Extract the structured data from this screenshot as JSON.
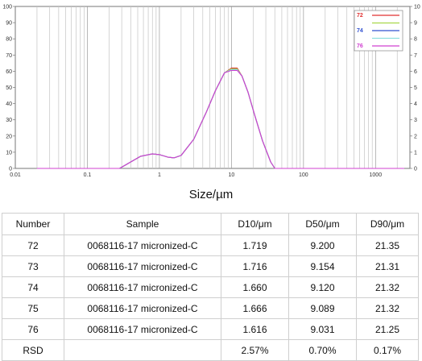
{
  "chart_data": {
    "type": "line",
    "xscale": "log",
    "xlim": [
      0.01,
      3000
    ],
    "ylim": [
      0,
      100
    ],
    "xlabel": "Size/µm",
    "x_ticks": [
      "0.01",
      "0.1",
      "1",
      "10",
      "100",
      "1000"
    ],
    "y_left_ticks": [
      "0",
      "10",
      "20",
      "30",
      "40",
      "50",
      "60",
      "70",
      "80",
      "90",
      "100"
    ],
    "y_right_ticks": [
      "0",
      "1",
      "2",
      "3",
      "4",
      "5",
      "6",
      "7",
      "8",
      "9",
      "10"
    ],
    "legend_position": "top-right",
    "series": [
      {
        "name": "72",
        "color": "#e03030",
        "x": [
          0.02,
          0.28,
          0.4,
          0.55,
          0.8,
          1.0,
          1.3,
          1.6,
          2.0,
          3.0,
          4.5,
          6.0,
          8.0,
          10.0,
          12.0,
          14.0,
          17.0,
          21.0,
          27.0,
          35.0,
          40.0,
          2500
        ],
        "y": [
          0,
          0,
          4,
          7.5,
          9,
          8.5,
          7,
          6.5,
          8,
          18,
          35,
          48,
          59,
          62,
          62,
          57,
          47,
          33,
          17,
          4,
          0,
          0
        ]
      },
      {
        "name": "",
        "color": "#a8d84a",
        "x": [
          0.02,
          0.28,
          0.4,
          0.55,
          0.8,
          1.0,
          1.3,
          1.6,
          2.0,
          3.0,
          4.5,
          6.0,
          8.0,
          10.0,
          12.0,
          14.0,
          17.0,
          21.0,
          27.0,
          35.0,
          40.0,
          2500
        ],
        "y": [
          0,
          0,
          4,
          7.5,
          9,
          8.5,
          7,
          6.5,
          8,
          18,
          35,
          48,
          59,
          61.5,
          61.5,
          57,
          47,
          33,
          17,
          4,
          0,
          0
        ]
      },
      {
        "name": "74",
        "color": "#3050d0",
        "x": [
          0.02,
          0.28,
          0.4,
          0.55,
          0.8,
          1.0,
          1.3,
          1.6,
          2.0,
          3.0,
          4.5,
          6.0,
          8.0,
          10.0,
          12.0,
          14.0,
          17.0,
          21.0,
          27.0,
          35.0,
          40.0,
          2500
        ],
        "y": [
          0,
          0,
          4,
          7.5,
          9,
          8.5,
          7,
          6.5,
          8,
          18,
          35,
          48,
          59,
          61,
          61,
          57,
          47,
          33,
          17,
          4,
          0,
          0
        ]
      },
      {
        "name": "",
        "color": "#8ee0e0",
        "x": [
          0.02,
          0.28,
          0.4,
          0.55,
          0.8,
          1.0,
          1.3,
          1.6,
          2.0,
          3.0,
          4.5,
          6.0,
          8.0,
          10.0,
          12.0,
          14.0,
          17.0,
          21.0,
          27.0,
          35.0,
          40.0,
          2500
        ],
        "y": [
          0,
          0,
          4,
          7.5,
          9,
          8.5,
          7,
          6.5,
          8,
          18,
          35,
          48,
          59,
          61,
          61,
          57,
          47,
          33,
          17,
          4,
          0,
          0
        ]
      },
      {
        "name": "76",
        "color": "#d040d0",
        "x": [
          0.02,
          0.28,
          0.4,
          0.55,
          0.8,
          1.0,
          1.3,
          1.6,
          2.0,
          3.0,
          4.5,
          6.0,
          8.0,
          10.0,
          12.0,
          14.0,
          17.0,
          21.0,
          27.0,
          35.0,
          40.0,
          2500
        ],
        "y": [
          0,
          0,
          4,
          7.5,
          9,
          8.5,
          7,
          6.5,
          8,
          18,
          35,
          48,
          59,
          60.5,
          60.5,
          57,
          47,
          33,
          17,
          4,
          0,
          0
        ]
      }
    ]
  },
  "table": {
    "headers": [
      "Number",
      "Sample",
      "D10/μm",
      "D50/μm",
      "D90/μm"
    ],
    "rows": [
      [
        "72",
        "0068116-17 micronized-C",
        "1.719",
        "9.200",
        "21.35"
      ],
      [
        "73",
        "0068116-17 micronized-C",
        "1.716",
        "9.154",
        "21.31"
      ],
      [
        "74",
        "0068116-17 micronized-C",
        "1.660",
        "9.120",
        "21.32"
      ],
      [
        "75",
        "0068116-17 micronized-C",
        "1.666",
        "9.089",
        "21.32"
      ],
      [
        "76",
        "0068116-17 micronized-C",
        "1.616",
        "9.031",
        "21.25"
      ],
      [
        "RSD",
        "",
        "2.57%",
        "0.70%",
        "0.17%"
      ]
    ]
  }
}
